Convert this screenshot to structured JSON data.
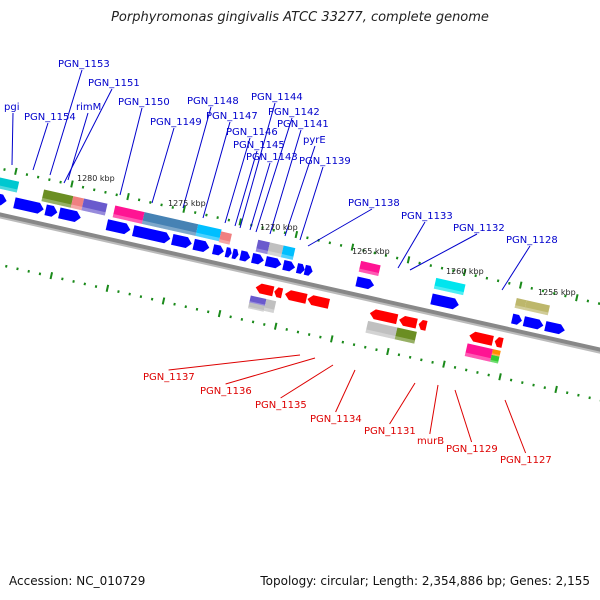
{
  "title": "Porphyromonas gingivalis ATCC 33277, complete genome",
  "footer": {
    "accession": "Accession: NC_010729",
    "summary": "Topology: circular; Length: 2,354,886 bp; Genes: 2,155"
  },
  "colors": {
    "forward_gene": "#0000ff",
    "reverse_gene": "#ff0000",
    "forward_label": "#0000cc",
    "reverse_label": "#dd0000",
    "tick": "#1a8a1a",
    "backbone": "#888888"
  },
  "scale_labels": [
    "1280 kbp",
    "1275 kbp",
    "1270 kbp",
    "1265 kbp",
    "1260 kbp",
    "1255 kbp"
  ],
  "forward_labels": [
    "pgi",
    "PGN_1154",
    "PGN_1153",
    "rimM",
    "PGN_1151",
    "PGN_1150",
    "PGN_1149",
    "PGN_1148",
    "PGN_1147",
    "PGN_1146",
    "PGN_1145",
    "PGN_1144",
    "PGN_1143",
    "PGN_1142",
    "PGN_1141",
    "pyrE",
    "PGN_1139",
    "PGN_1138",
    "PGN_1133",
    "PGN_1132",
    "PGN_1128"
  ],
  "reverse_labels": [
    "PGN_1137",
    "PGN_1136",
    "PGN_1135",
    "PGN_1134",
    "PGN_1131",
    "murB",
    "PGN_1129",
    "PGN_1127"
  ]
}
